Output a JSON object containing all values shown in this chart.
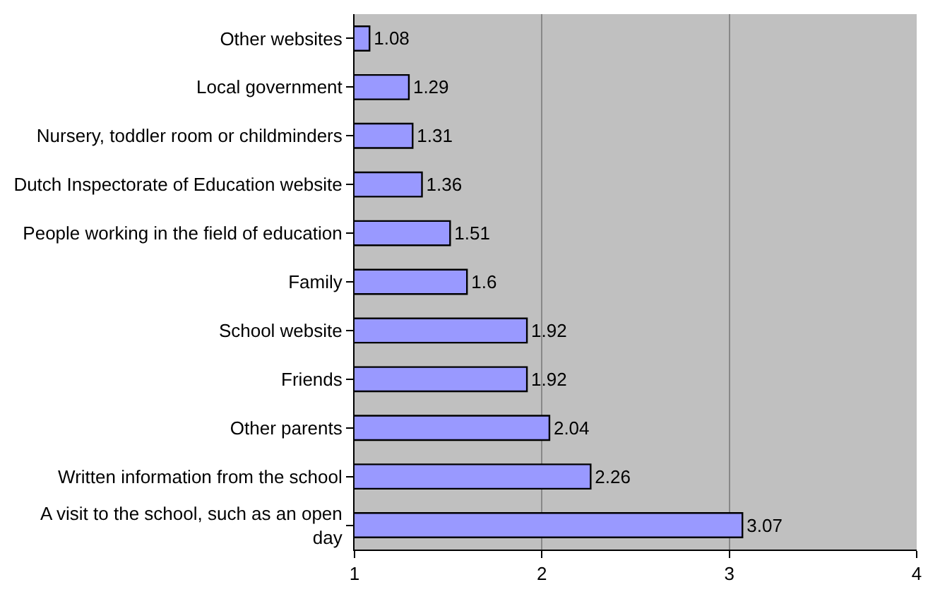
{
  "chart_data": {
    "type": "bar",
    "orientation": "horizontal",
    "categories": [
      "Other websites",
      "Local government",
      "Nursery, toddler room or childminders",
      "Dutch Inspectorate of Education website",
      "People working in the field of education",
      "Family",
      "School website",
      "Friends",
      "Other parents",
      "Written information from the school",
      "A visit to the school, such as an open day"
    ],
    "values": [
      1.08,
      1.29,
      1.31,
      1.36,
      1.51,
      1.6,
      1.92,
      1.92,
      2.04,
      2.26,
      3.07
    ],
    "color": "#9999ff",
    "data_labels": true,
    "xlim": [
      1,
      4
    ],
    "xticks": [
      1,
      2,
      3,
      4
    ],
    "grid": "x",
    "legend": false
  }
}
